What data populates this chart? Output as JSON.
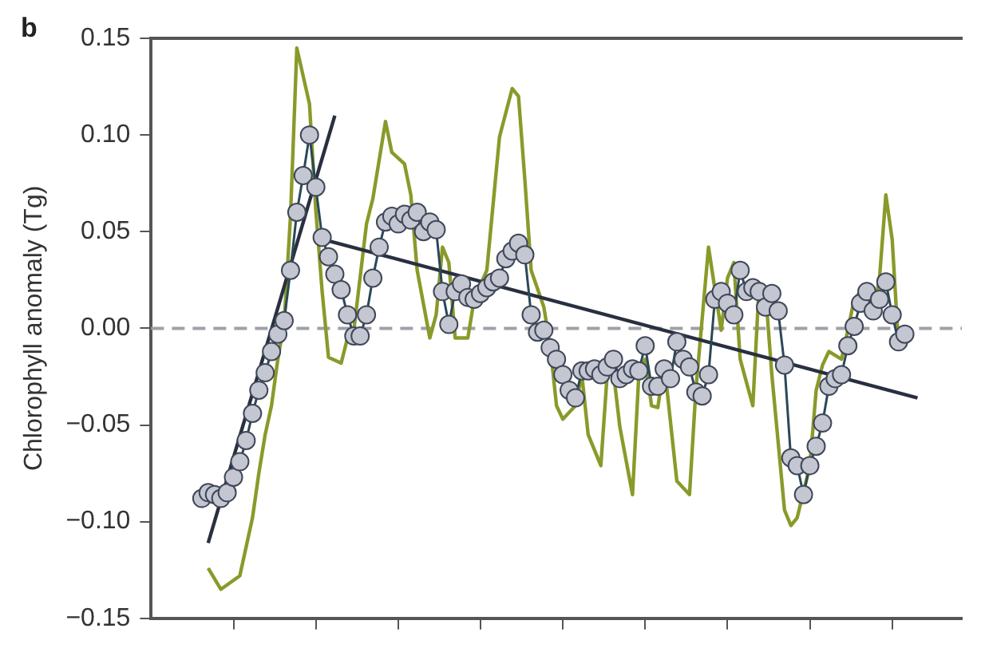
{
  "chart_data": {
    "type": "line",
    "ylabel": "Chlorophyll anomaly (Tg)",
    "annotations": [
      "b"
    ],
    "categories": [
      null,
      null,
      null,
      null,
      null,
      null,
      null,
      null,
      null,
      null,
      null,
      null,
      null,
      null,
      null,
      null,
      null,
      null,
      null,
      null,
      null,
      null,
      null,
      null,
      null,
      null,
      null,
      null,
      null,
      null,
      null,
      null,
      null,
      null,
      null,
      null,
      null,
      null,
      null,
      null,
      null,
      null,
      null,
      null,
      null,
      null,
      null,
      null,
      null,
      null,
      null,
      null,
      null,
      null,
      null,
      null,
      null,
      null,
      null,
      null,
      null,
      null,
      null,
      null,
      null,
      null,
      null,
      null,
      null,
      null,
      null,
      null,
      null,
      null,
      null,
      null,
      null,
      null,
      null,
      null,
      null,
      null,
      null,
      null,
      null,
      null,
      null,
      null,
      null,
      null,
      null,
      null,
      null,
      null,
      null,
      null,
      null,
      null,
      null,
      null,
      null,
      null,
      null,
      null,
      null,
      null,
      null,
      null,
      null,
      null,
      null,
      null,
      null,
      null,
      null,
      null,
      null,
      null,
      null,
      null,
      null,
      null,
      null,
      null,
      null,
      null,
      null,
      null,
      null
    ],
    "ylim": [
      -0.15,
      0.15
    ],
    "yticks": [
      {
        "value": -0.15,
        "label": "−0.15"
      },
      {
        "value": -0.1,
        "label": "−0.10"
      },
      {
        "value": -0.05,
        "label": "−0.05"
      },
      {
        "value": 0,
        "label": "0.00"
      },
      {
        "value": 0.05,
        "label": "0.05"
      },
      {
        "value": 0.1,
        "label": "0.10"
      },
      {
        "value": 0.15,
        "label": "0.15"
      }
    ],
    "tick_labels": "y",
    "ref_lines": [
      {
        "axis": "y",
        "value": 0,
        "color": "#a0a0a8",
        "line_style": "dashed"
      }
    ],
    "series": [
      {
        "color": "#8a9a2a",
        "marker": "none",
        "values": [
          null,
          null,
          null,
          null,
          null,
          null,
          null,
          null,
          null,
          -0.124,
          null,
          -0.135,
          null,
          null,
          -0.128,
          null,
          -0.098,
          -0.075,
          -0.055,
          -0.04,
          -0.016,
          0.003,
          0.058,
          0.145,
          null,
          0.116,
          0.061,
          0.019,
          -0.015,
          null,
          -0.018,
          -0.005,
          -0.001,
          null,
          0.054,
          0.067,
          null,
          0.107,
          0.091,
          null,
          0.085,
          0.069,
          0.03,
          null,
          -0.005,
          0.007,
          0.042,
          0.034,
          -0.005,
          null,
          -0.005,
          0.015,
          null,
          0.03,
          null,
          0.099,
          null,
          0.124,
          0.12,
          0.077,
          0.03,
          null,
          0.011,
          -0.009,
          -0.04,
          -0.047,
          null,
          -0.04,
          -0.024,
          -0.055,
          null,
          -0.071,
          -0.024,
          -0.023,
          -0.051,
          null,
          -0.086,
          -0.024,
          -0.016,
          -0.04,
          -0.041,
          -0.018,
          null,
          -0.079,
          null,
          -0.086,
          -0.032,
          null,
          0.042,
          null,
          -0.001,
          0.026,
          0.034,
          -0.016,
          null,
          -0.04,
          0.023,
          0.019,
          -0.024,
          null,
          -0.094,
          -0.102,
          -0.098,
          null,
          -0.071,
          -0.032,
          -0.019,
          -0.012,
          null,
          -0.016,
          -0.001,
          0.015,
          0.019,
          null,
          0.007,
          0.026,
          0.069,
          0.046,
          -0.009,
          -0.005,
          null,
          null,
          null,
          null,
          null,
          null,
          null,
          null,
          null
        ]
      },
      {
        "color": "#2a4858",
        "marker": "circle",
        "values": [
          null,
          null,
          null,
          null,
          null,
          null,
          null,
          null,
          -0.088,
          -0.085,
          -0.086,
          -0.088,
          -0.085,
          -0.077,
          -0.069,
          -0.058,
          -0.044,
          -0.032,
          -0.023,
          -0.012,
          -0.003,
          0.004,
          0.03,
          0.06,
          0.079,
          0.1,
          0.073,
          0.047,
          0.037,
          0.028,
          0.02,
          0.007,
          -0.004,
          -0.004,
          0.007,
          0.026,
          0.042,
          0.055,
          0.058,
          0.054,
          0.059,
          0.056,
          0.06,
          0.05,
          0.055,
          0.051,
          0.019,
          0.002,
          0.019,
          0.023,
          0.016,
          0.015,
          0.018,
          0.021,
          0.024,
          0.026,
          0.036,
          0.04,
          0.044,
          0.038,
          0.007,
          -0.002,
          -0.001,
          -0.01,
          -0.016,
          -0.024,
          -0.032,
          -0.036,
          -0.022,
          -0.022,
          -0.021,
          -0.024,
          -0.02,
          -0.016,
          -0.026,
          -0.024,
          -0.021,
          -0.022,
          -0.009,
          -0.03,
          -0.03,
          -0.021,
          -0.026,
          -0.007,
          -0.016,
          -0.02,
          -0.033,
          -0.035,
          -0.024,
          0.015,
          0.019,
          0.013,
          0.007,
          0.03,
          0.019,
          0.021,
          0.019,
          0.011,
          0.018,
          0.009,
          -0.019,
          -0.067,
          -0.071,
          -0.086,
          -0.071,
          -0.061,
          -0.049,
          -0.03,
          -0.026,
          -0.024,
          -0.009,
          0.001,
          0.013,
          0.019,
          0.009,
          0.015,
          0.024,
          0.007,
          -0.007,
          -0.003,
          null,
          null,
          null,
          null,
          null,
          null,
          null,
          null,
          null
        ]
      },
      {
        "color": "#283040",
        "marker": "none",
        "values": [
          null,
          null,
          null,
          null,
          null,
          null,
          null,
          null,
          null,
          -0.111,
          null,
          null,
          null,
          null,
          null,
          null,
          null,
          null,
          null,
          null,
          null,
          null,
          null,
          null,
          null,
          null,
          null,
          null,
          null,
          0.11,
          null,
          null,
          null,
          null,
          null,
          null,
          null,
          null,
          null,
          null,
          null,
          null,
          null,
          null,
          null,
          null,
          null,
          null,
          null,
          null,
          null,
          null,
          null,
          null,
          null,
          null,
          null,
          null,
          null,
          null,
          null,
          null,
          null,
          null,
          null,
          null,
          null,
          null,
          null,
          null,
          null,
          null,
          null,
          null,
          null,
          null,
          null,
          null,
          null,
          null,
          null,
          null,
          null,
          null,
          null,
          null,
          null,
          null,
          null,
          null,
          null,
          null,
          null,
          null,
          null,
          null,
          null,
          null,
          null,
          null,
          null,
          null,
          null,
          null,
          null,
          null,
          null,
          null,
          null,
          null,
          null,
          null,
          null,
          null,
          null,
          null,
          null,
          null,
          null,
          null,
          null,
          null,
          null,
          null,
          null,
          null,
          null,
          null,
          null
        ]
      },
      {
        "color": "#283040",
        "marker": "none",
        "values": [
          null,
          null,
          null,
          null,
          null,
          null,
          null,
          null,
          null,
          null,
          null,
          null,
          null,
          null,
          null,
          null,
          null,
          null,
          null,
          null,
          null,
          null,
          null,
          null,
          null,
          null,
          0.047,
          null,
          null,
          null,
          null,
          null,
          null,
          null,
          null,
          null,
          null,
          null,
          null,
          null,
          null,
          null,
          null,
          null,
          null,
          null,
          null,
          null,
          null,
          null,
          null,
          null,
          null,
          null,
          null,
          null,
          null,
          null,
          null,
          null,
          null,
          null,
          null,
          null,
          null,
          null,
          null,
          null,
          null,
          null,
          null,
          null,
          null,
          null,
          null,
          null,
          null,
          null,
          null,
          null,
          null,
          null,
          null,
          null,
          null,
          null,
          null,
          null,
          null,
          null,
          null,
          null,
          null,
          null,
          null,
          null,
          null,
          null,
          null,
          null,
          null,
          null,
          null,
          null,
          null,
          null,
          null,
          null,
          null,
          null,
          null,
          null,
          null,
          null,
          null,
          null,
          null,
          null,
          null,
          null,
          null,
          -0.036,
          null,
          null,
          null,
          null,
          null,
          null,
          null
        ]
      }
    ]
  }
}
